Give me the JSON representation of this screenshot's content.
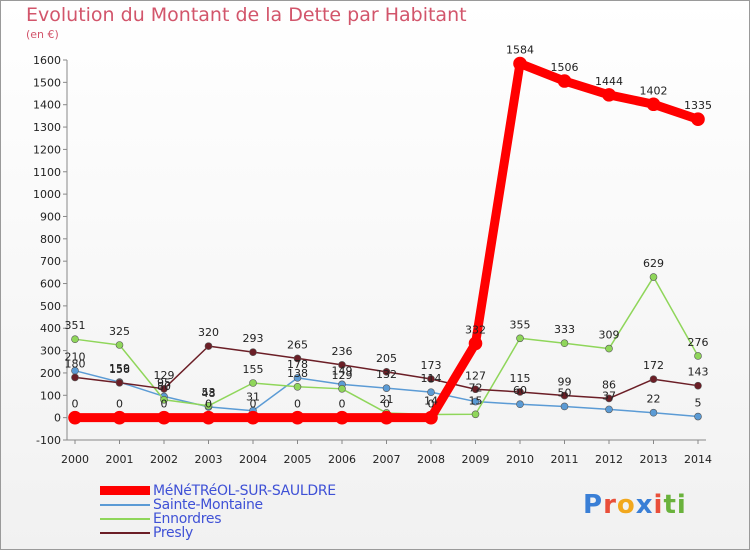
{
  "header": {
    "title": "Evolution du Montant de la Dette par Habitant",
    "unit": "(en €)"
  },
  "logo": {
    "text": "Proxiti",
    "letters": [
      "P",
      "r",
      "o",
      "x",
      "i",
      "ti"
    ]
  },
  "chart_data": {
    "type": "line",
    "categories": [
      "2000",
      "2001",
      "2002",
      "2003",
      "2004",
      "2005",
      "2006",
      "2007",
      "2008",
      "2009",
      "2010",
      "2011",
      "2012",
      "2013",
      "2014"
    ],
    "ylim": [
      -100,
      1600
    ],
    "yticks": [
      -100,
      0,
      100,
      200,
      300,
      400,
      500,
      600,
      700,
      800,
      900,
      1000,
      1100,
      1200,
      1300,
      1400,
      1500,
      1600
    ],
    "grid": false,
    "legend_position": "bottom-left",
    "series": [
      {
        "name": "MéNéTRéOL-SUR-SAULDRE",
        "color": "#ff0000",
        "width": 9,
        "values": [
          0,
          0,
          0,
          0,
          0,
          0,
          0,
          0,
          0,
          332,
          1584,
          1506,
          1444,
          1402,
          1335
        ]
      },
      {
        "name": "Sainte-Montaine",
        "color": "#5b9bd5",
        "width": 1.5,
        "values": [
          210,
          159,
          95,
          48,
          31,
          178,
          149,
          132,
          114,
          72,
          60,
          50,
          37,
          22,
          5
        ]
      },
      {
        "name": "Ennordres",
        "color": "#8fd65a",
        "width": 1.5,
        "values": [
          351,
          325,
          80,
          53,
          155,
          138,
          129,
          21,
          14,
          15,
          355,
          333,
          309,
          629,
          276
        ]
      },
      {
        "name": "Presly",
        "color": "#6b1e26",
        "width": 1.5,
        "values": [
          180,
          156,
          129,
          320,
          293,
          265,
          236,
          205,
          173,
          127,
          115,
          99,
          86,
          172,
          143
        ]
      }
    ],
    "data_labels": [
      [
        "0",
        "0",
        "0",
        "0",
        "0",
        "0",
        "0",
        "0",
        "0",
        "332",
        "1584",
        "1506",
        "1444",
        "1402",
        "1335"
      ],
      [
        "210",
        "159",
        "95",
        "48",
        "31",
        "178",
        "149",
        "132",
        "114",
        "72",
        "60",
        "50",
        "37",
        "22",
        "5"
      ],
      [
        "351",
        "325",
        "80",
        "53",
        "155",
        "138",
        "129",
        "21",
        "14",
        "15",
        "355",
        "333",
        "309",
        "629",
        "276"
      ],
      [
        "180",
        "156",
        "129",
        "320",
        "293",
        "265",
        "236",
        "205",
        "173",
        "127",
        "115",
        "99",
        "86",
        "172",
        "143"
      ]
    ]
  }
}
